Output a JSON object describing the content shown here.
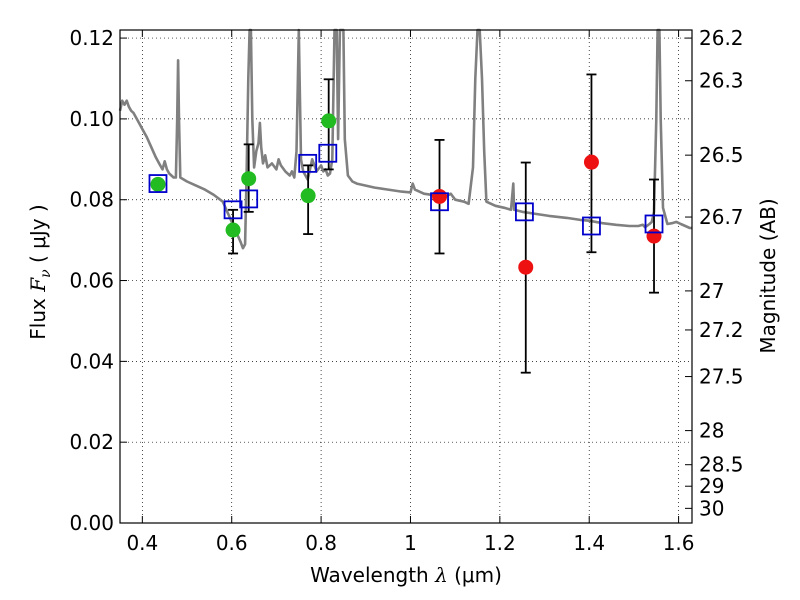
{
  "chart_data": {
    "type": "scatter",
    "xlabel": {
      "prefix": "Wavelength  ",
      "sym": "λ",
      "unit": " (μm)"
    },
    "ylabel": {
      "prefix": "Flux  ",
      "sym": "F",
      "sub": "ν",
      "unit": "  ( μJy )"
    },
    "y2label": "Magnitude (AB)",
    "xlim": [
      0.35,
      1.63
    ],
    "ylim": [
      0.0,
      0.122
    ],
    "grid": true,
    "x_ticks": [
      {
        "v": 0.4,
        "label": "0.4"
      },
      {
        "v": 0.6,
        "label": "0.6"
      },
      {
        "v": 0.8,
        "label": "0.8"
      },
      {
        "v": 1.0,
        "label": "1"
      },
      {
        "v": 1.2,
        "label": "1.2"
      },
      {
        "v": 1.4,
        "label": "1.4"
      },
      {
        "v": 1.6,
        "label": "1.6"
      }
    ],
    "y_ticks": [
      {
        "v": 0.0,
        "label": "0.00"
      },
      {
        "v": 0.02,
        "label": "0.02"
      },
      {
        "v": 0.04,
        "label": "0.04"
      },
      {
        "v": 0.06,
        "label": "0.06"
      },
      {
        "v": 0.08,
        "label": "0.08"
      },
      {
        "v": 0.1,
        "label": "0.10"
      },
      {
        "v": 0.12,
        "label": "0.12"
      }
    ],
    "y2_ticks": [
      {
        "v": 26.2,
        "label": "26.2"
      },
      {
        "v": 26.3,
        "label": "26.3"
      },
      {
        "v": 26.5,
        "label": "26.5"
      },
      {
        "v": 26.7,
        "label": "26.7"
      },
      {
        "v": 27.0,
        "label": "27"
      },
      {
        "v": 27.2,
        "label": "27.2"
      },
      {
        "v": 27.5,
        "label": "27.5"
      },
      {
        "v": 28.0,
        "label": "28"
      },
      {
        "v": 28.5,
        "label": "28.5"
      },
      {
        "v": 29.0,
        "label": "29"
      },
      {
        "v": 30.0,
        "label": "30"
      }
    ],
    "colors": {
      "model": "#808080",
      "green": "#22bb22",
      "red": "#ee1111",
      "blue": "#0000cc",
      "errorbar": "#000000"
    },
    "model_sed": [
      [
        0.35,
        0.102
      ],
      [
        0.355,
        0.1045
      ],
      [
        0.36,
        0.1035
      ],
      [
        0.365,
        0.1045
      ],
      [
        0.37,
        0.103
      ],
      [
        0.375,
        0.102
      ],
      [
        0.38,
        0.1015
      ],
      [
        0.39,
        0.0995
      ],
      [
        0.4,
        0.0975
      ],
      [
        0.41,
        0.0955
      ],
      [
        0.42,
        0.093
      ],
      [
        0.43,
        0.0905
      ],
      [
        0.44,
        0.0885
      ],
      [
        0.445,
        0.0875
      ],
      [
        0.45,
        0.0895
      ],
      [
        0.455,
        0.0875
      ],
      [
        0.46,
        0.0865
      ],
      [
        0.47,
        0.0855
      ],
      [
        0.475,
        0.0855
      ],
      [
        0.478,
        0.1
      ],
      [
        0.48,
        0.1145
      ],
      [
        0.482,
        0.1
      ],
      [
        0.485,
        0.0855
      ],
      [
        0.5,
        0.0845
      ],
      [
        0.52,
        0.0835
      ],
      [
        0.54,
        0.0825
      ],
      [
        0.56,
        0.0812
      ],
      [
        0.58,
        0.0795
      ],
      [
        0.6,
        0.0745
      ],
      [
        0.61,
        0.072
      ],
      [
        0.62,
        0.0695
      ],
      [
        0.625,
        0.068
      ],
      [
        0.63,
        0.069
      ],
      [
        0.633,
        0.085
      ],
      [
        0.637,
        0.11
      ],
      [
        0.64,
        0.122
      ],
      [
        0.643,
        0.122
      ],
      [
        0.646,
        0.1
      ],
      [
        0.65,
        0.088
      ],
      [
        0.655,
        0.092
      ],
      [
        0.66,
        0.094
      ],
      [
        0.663,
        0.099
      ],
      [
        0.666,
        0.093
      ],
      [
        0.67,
        0.089
      ],
      [
        0.675,
        0.091
      ],
      [
        0.68,
        0.088
      ],
      [
        0.69,
        0.089
      ],
      [
        0.7,
        0.0875
      ],
      [
        0.705,
        0.09
      ],
      [
        0.71,
        0.0885
      ],
      [
        0.72,
        0.087
      ],
      [
        0.73,
        0.086
      ],
      [
        0.735,
        0.087
      ],
      [
        0.74,
        0.0855
      ],
      [
        0.745,
        0.092
      ],
      [
        0.748,
        0.11
      ],
      [
        0.75,
        0.122
      ],
      [
        0.752,
        0.11
      ],
      [
        0.755,
        0.09
      ],
      [
        0.76,
        0.087
      ],
      [
        0.77,
        0.085
      ],
      [
        0.78,
        0.09
      ],
      [
        0.79,
        0.087
      ],
      [
        0.8,
        0.0885
      ],
      [
        0.805,
        0.087
      ],
      [
        0.81,
        0.0875
      ],
      [
        0.815,
        0.086
      ],
      [
        0.82,
        0.0865
      ],
      [
        0.825,
        0.09
      ],
      [
        0.83,
        0.122
      ],
      [
        0.835,
        0.122
      ],
      [
        0.838,
        0.095
      ],
      [
        0.842,
        0.122
      ],
      [
        0.846,
        0.122
      ],
      [
        0.85,
        0.122
      ],
      [
        0.853,
        0.095
      ],
      [
        0.86,
        0.086
      ],
      [
        0.87,
        0.0845
      ],
      [
        0.88,
        0.084
      ],
      [
        0.9,
        0.0835
      ],
      [
        0.92,
        0.083
      ],
      [
        0.95,
        0.0825
      ],
      [
        0.98,
        0.082
      ],
      [
        1.0,
        0.0818
      ],
      [
        1.005,
        0.084
      ],
      [
        1.01,
        0.0825
      ],
      [
        1.03,
        0.0815
      ],
      [
        1.06,
        0.081
      ],
      [
        1.08,
        0.0808
      ],
      [
        1.09,
        0.0815
      ],
      [
        1.1,
        0.08
      ],
      [
        1.12,
        0.0795
      ],
      [
        1.13,
        0.079
      ],
      [
        1.14,
        0.088
      ],
      [
        1.145,
        0.11
      ],
      [
        1.15,
        0.122
      ],
      [
        1.155,
        0.122
      ],
      [
        1.16,
        0.11
      ],
      [
        1.165,
        0.092
      ],
      [
        1.17,
        0.0795
      ],
      [
        1.19,
        0.0785
      ],
      [
        1.21,
        0.078
      ],
      [
        1.225,
        0.0775
      ],
      [
        1.23,
        0.084
      ],
      [
        1.232,
        0.0775
      ],
      [
        1.25,
        0.077
      ],
      [
        1.28,
        0.0765
      ],
      [
        1.31,
        0.076
      ],
      [
        1.35,
        0.0755
      ],
      [
        1.38,
        0.075
      ],
      [
        1.4,
        0.0748
      ],
      [
        1.43,
        0.0742
      ],
      [
        1.46,
        0.0738
      ],
      [
        1.49,
        0.0735
      ],
      [
        1.51,
        0.0735
      ],
      [
        1.52,
        0.0738
      ],
      [
        1.525,
        0.0732
      ],
      [
        1.535,
        0.074
      ],
      [
        1.54,
        0.0745
      ],
      [
        1.545,
        0.077
      ],
      [
        1.55,
        0.1
      ],
      [
        1.553,
        0.122
      ],
      [
        1.557,
        0.122
      ],
      [
        1.56,
        0.1
      ],
      [
        1.565,
        0.078
      ],
      [
        1.575,
        0.074
      ],
      [
        1.585,
        0.0742
      ],
      [
        1.595,
        0.0745
      ],
      [
        1.605,
        0.074
      ],
      [
        1.615,
        0.0735
      ],
      [
        1.625,
        0.073
      ],
      [
        1.63,
        0.073
      ]
    ],
    "model_photometry": [
      {
        "x": 0.435,
        "y": 0.084
      },
      {
        "x": 0.603,
        "y": 0.0775
      },
      {
        "x": 0.638,
        "y": 0.0802
      },
      {
        "x": 0.77,
        "y": 0.089
      },
      {
        "x": 0.815,
        "y": 0.0915
      },
      {
        "x": 1.065,
        "y": 0.0795
      },
      {
        "x": 1.255,
        "y": 0.077
      },
      {
        "x": 1.405,
        "y": 0.0735
      },
      {
        "x": 1.545,
        "y": 0.074
      }
    ],
    "observed_green": [
      {
        "x": 0.435,
        "y": 0.0838,
        "err": null
      },
      {
        "x": 0.603,
        "y": 0.0725,
        "err": [
          0.0667,
          0.0775
        ]
      },
      {
        "x": 0.638,
        "y": 0.0852,
        "err": [
          0.077,
          0.0937
        ]
      },
      {
        "x": 0.771,
        "y": 0.081,
        "err": [
          0.0715,
          0.0885
        ]
      },
      {
        "x": 0.817,
        "y": 0.0995,
        "err": [
          0.0875,
          0.1098
        ]
      }
    ],
    "observed_red": [
      {
        "x": 1.065,
        "y": 0.0808,
        "err": [
          0.0667,
          0.0948
        ]
      },
      {
        "x": 1.258,
        "y": 0.0633,
        "err": [
          0.0372,
          0.0892
        ]
      },
      {
        "x": 1.405,
        "y": 0.0893,
        "err": [
          0.067,
          0.111
        ]
      },
      {
        "x": 1.545,
        "y": 0.071,
        "err": [
          0.057,
          0.085
        ]
      }
    ]
  }
}
